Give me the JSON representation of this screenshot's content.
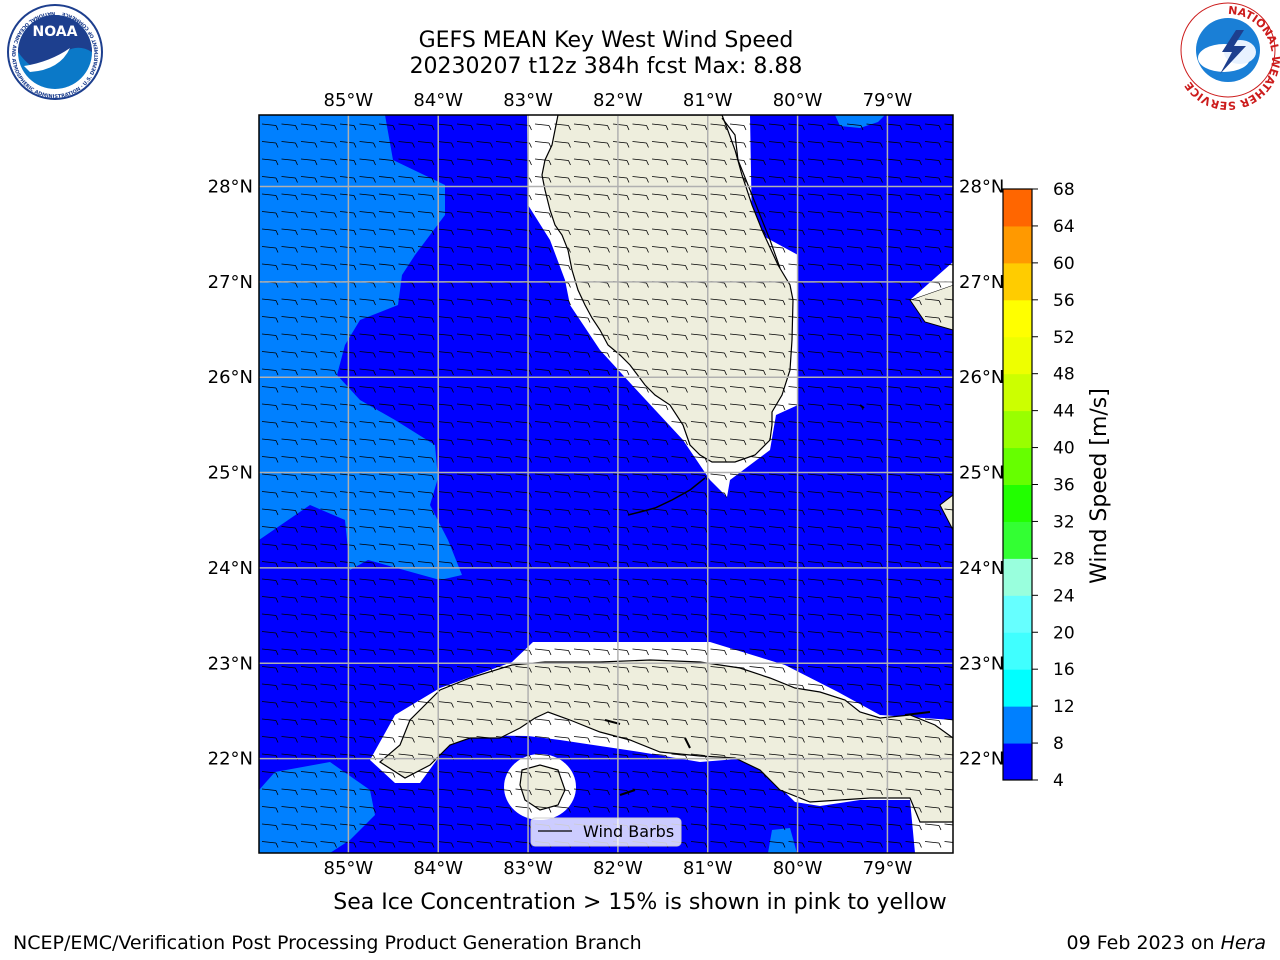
{
  "title_line1": "GEFS MEAN Key West Wind Speed",
  "title_line2": "20230207 t12z 384h fcst   Max: 8.88",
  "lon_labels": [
    "85°W",
    "84°W",
    "83°W",
    "82°W",
    "81°W",
    "80°W",
    "79°W"
  ],
  "lat_labels": [
    "28°N",
    "27°N",
    "26°N",
    "25°N",
    "24°N",
    "23°N",
    "22°N"
  ],
  "colorbar": {
    "label": "Wind Speed [m/s]",
    "ticks": [
      "4",
      "8",
      "12",
      "16",
      "20",
      "24",
      "28",
      "32",
      "36",
      "40",
      "44",
      "48",
      "52",
      "56",
      "60",
      "64",
      "68"
    ],
    "colors": [
      "#0000ff",
      "#0080ff",
      "#00ffff",
      "#40ffff",
      "#66ffff",
      "#99ffdd",
      "#33ff33",
      "#22ff00",
      "#66ff00",
      "#99ff00",
      "#ccff00",
      "#eeff00",
      "#ffff00",
      "#ffcc00",
      "#ff9900",
      "#ff6600",
      "#ff3300",
      "#ff0000"
    ]
  },
  "legend": {
    "label": "Wind Barbs"
  },
  "footer": {
    "ice_note": "Sea Ice Concentration > 15% is shown in pink to yellow",
    "credit": "NCEP/EMC/Verification Post Processing Product Generation Branch",
    "date": "09 Feb 2023 on",
    "machine": "Hera"
  },
  "logos": {
    "noaa": "NOAA",
    "noaa_ring": "NATIONAL OCEANIC AND ATMOSPHERIC ADMINISTRATION · U.S. DEPARTMENT OF COMMERCE",
    "nws_ring": "NATIONAL WEATHER SERVICE"
  },
  "colors": {
    "wind_4_8": "#0000ff",
    "wind_8_12": "#0080ff",
    "land": "#eeeedd",
    "grid": "#b0b0b0"
  }
}
